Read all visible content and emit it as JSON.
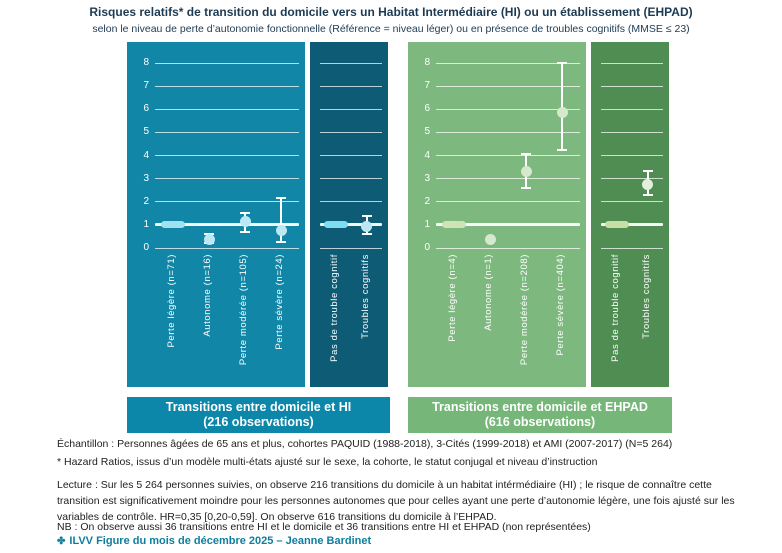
{
  "title": "Risques relatifs* de transition du domicile vers un Habitat Intermédiaire (HI) ou un établissement (EHPAD)",
  "subtitle": "selon le niveau de perte d’autonomie fonctionnelle (Référence = niveau léger) ou en présence de troubles cognitifs (MMSE ≤ 23)",
  "chart_data": {
    "type": "scatter",
    "ylim": [
      0,
      8
    ],
    "yticks": [
      0,
      1,
      2,
      3,
      4,
      5,
      6,
      7,
      8
    ],
    "reference_value": 1,
    "grid": true,
    "groups": [
      {
        "id": "hi",
        "banner": {
          "line1": "Transitions entre domicile et HI",
          "line2": "(216 observations)",
          "bg": "#0c86a9"
        },
        "panels": [
          {
            "id": "hi-autonomie",
            "bg": "#1186a6",
            "dot_color": "#bce8f4",
            "ref_color": "#9fe2f2",
            "points": [
              {
                "label": "Perte légère (n=71)",
                "hr": 1.0,
                "reference": true
              },
              {
                "label": "Autonome (n=16)",
                "hr": 0.35,
                "ci": [
                  0.2,
                  0.59
                ]
              },
              {
                "label": "Perte modérée (n=105)",
                "hr": 1.15,
                "ci": [
                  0.7,
                  1.5
                ]
              },
              {
                "label": "Perte sévère (n=24)",
                "hr": 0.75,
                "ci": [
                  0.25,
                  2.15
                ]
              }
            ]
          },
          {
            "id": "hi-cognitif",
            "bg": "#0d5b75",
            "dot_color": "#bce8f4",
            "ref_color": "#7fdcf2",
            "points": [
              {
                "label": "Pas de trouble cognitif",
                "hr": 1.0,
                "reference": true
              },
              {
                "label": "Troubles cognitifs",
                "hr": 0.95,
                "ci": [
                  0.6,
                  1.4
                ]
              }
            ]
          }
        ]
      },
      {
        "id": "ehpad",
        "banner": {
          "line1": "Transitions entre domicile et EHPAD",
          "line2": "(616 observations)",
          "bg": "#76b779"
        },
        "panels": [
          {
            "id": "ehpad-autonomie",
            "bg": "#7db97f",
            "dot_color": "#d6e8cd",
            "ref_color": "#cfe3b6",
            "points": [
              {
                "label": "Perte légère (n=4)",
                "hr": 1.0,
                "reference": true
              },
              {
                "label": "Autonome (n=1)",
                "hr": 0.35,
                "ci": null
              },
              {
                "label": "Perte modérée (n=208)",
                "hr": 3.3,
                "ci": [
                  2.6,
                  4.05
                ]
              },
              {
                "label": "Perte sévère (n=404)",
                "hr": 5.85,
                "ci": [
                  4.25,
                  8.0
                ]
              }
            ]
          },
          {
            "id": "ehpad-cognitif",
            "bg": "#4f8d52",
            "dot_color": "#e2efdb",
            "ref_color": "#c7dfa6",
            "points": [
              {
                "label": "Pas de trouble cognitif",
                "hr": 1.0,
                "reference": true
              },
              {
                "label": "Troubles cognitifs",
                "hr": 2.75,
                "ci": [
                  2.3,
                  3.35
                ]
              }
            ]
          }
        ]
      }
    ]
  },
  "footnotes": {
    "echantillon": "Échantillon : Personnes âgées de 65 ans et plus, cohortes PAQUID (1988-2018), 3-Cités (1999-2018) et AMI (2007-2017) (N=5 264)",
    "hazard": "* Hazard Ratios, issus d’un modèle multi-états ajusté sur le sexe, la cohorte, le statut conjugal et niveau d’instruction",
    "lecture": "Lecture : Sur les 5 264 personnes suivies, on observe 216 transitions du domicile à un habitat intérmédiaire (HI) ; le risque de connaître cette transition est significativement moindre pour les personnes autonomes que pour celles ayant une perte d’autonomie légère, une fois ajusté sur les variables de contrôle. HR=0,35 [0,20-0,59]. On observe 616 transitions du domicile à l’EHPAD.",
    "nb": "NB : On observe aussi 36 transitions entre HI et le domicile et 36 transitions entre HI et EHPAD (non représentées)"
  },
  "credit": {
    "icon": "✤",
    "label": "ILVV Figure du mois de décembre 2025 – Jeanne Bardinet"
  }
}
